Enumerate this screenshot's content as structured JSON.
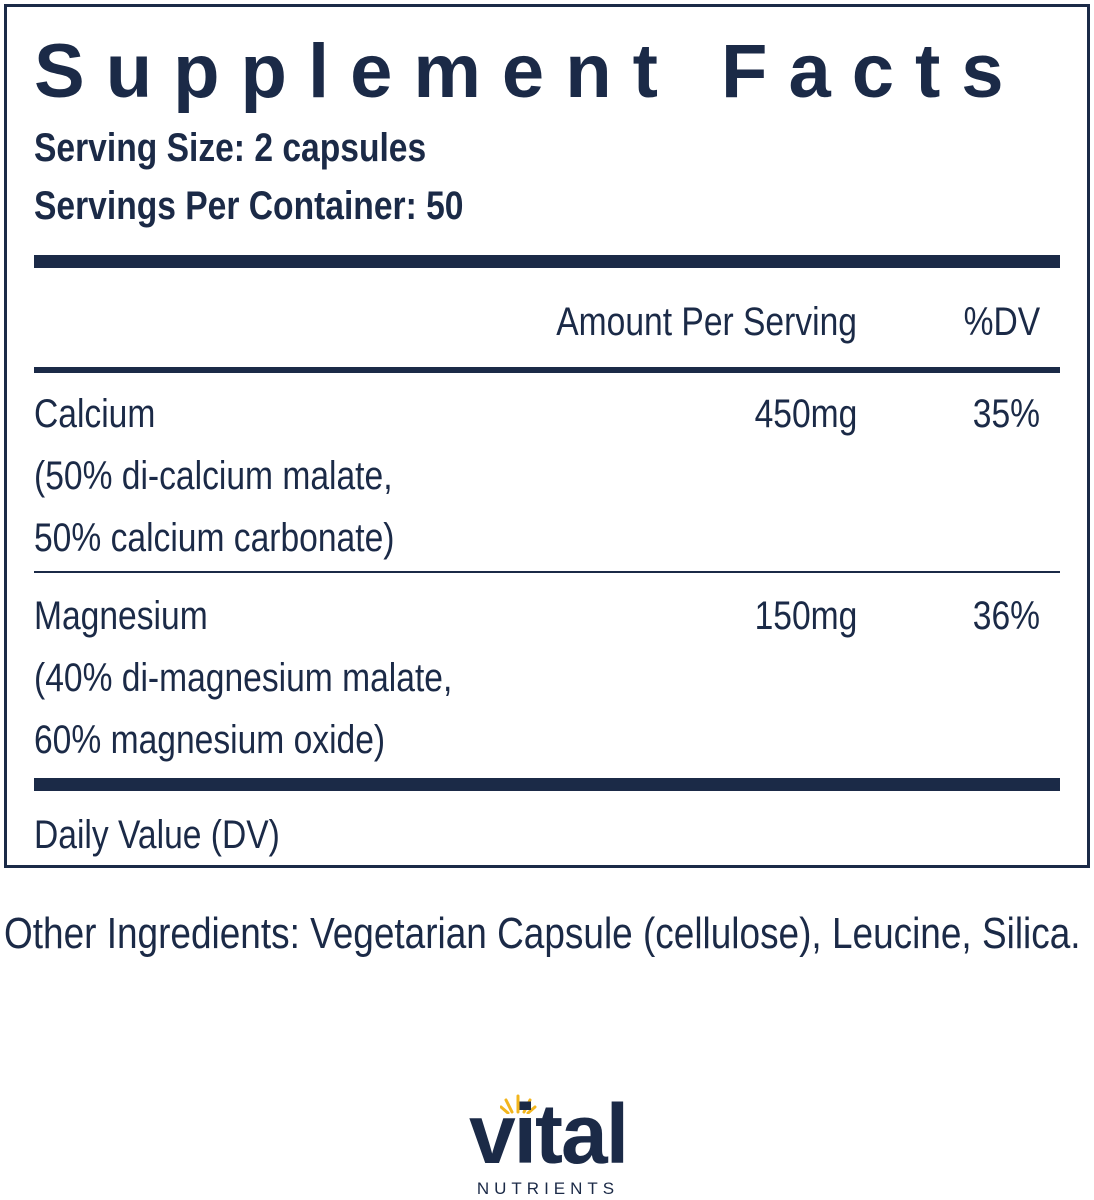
{
  "panel": {
    "title": "Supplement Facts",
    "serving_size": "Serving Size: 2 capsules",
    "servings_per_container": "Servings Per Container: 50",
    "header": {
      "amount": "Amount Per Serving",
      "dv": "%DV"
    },
    "rows": [
      {
        "lines": [
          "Calcium",
          "(50% di-calcium malate,",
          "50% calcium carbonate)"
        ],
        "amount": "450mg",
        "dv": "35%"
      },
      {
        "lines": [
          "Magnesium",
          "(40% di-magnesium malate,",
          "60% magnesium oxide)"
        ],
        "amount": "150mg",
        "dv": "36%"
      }
    ],
    "footnote": "Daily Value (DV)"
  },
  "other_ingredients": "Other Ingredients: Vegetarian Capsule (cellulose), Leucine, Silica.",
  "logo": {
    "name": "vital",
    "tagline": "NUTRIENTS"
  }
}
